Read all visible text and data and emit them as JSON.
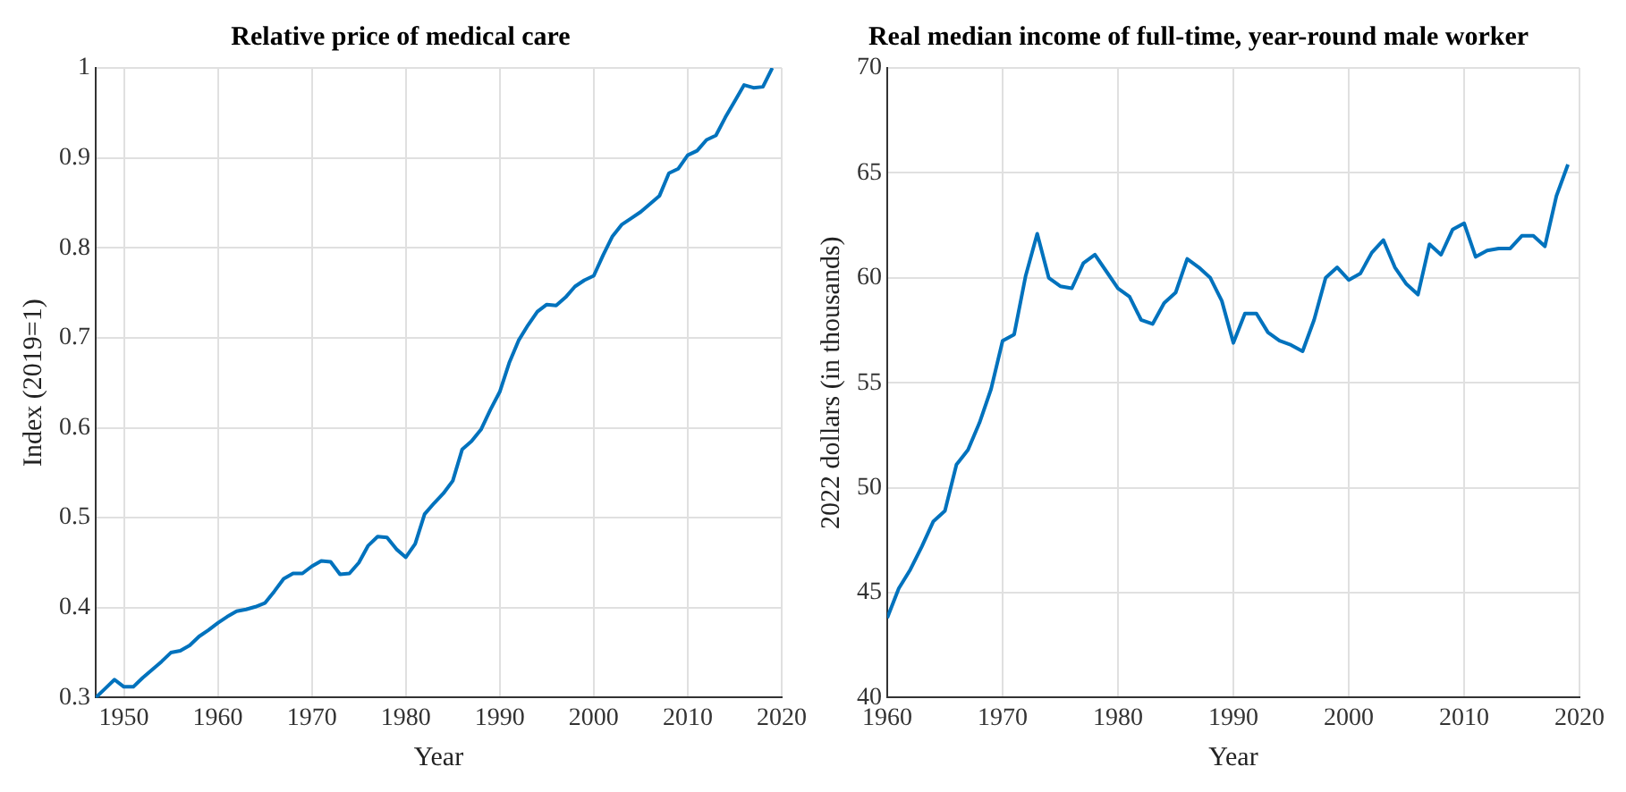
{
  "chart_data": [
    {
      "type": "line",
      "title": "Relative price of medical care",
      "xlabel": "Year",
      "ylabel": "Index (2019=1)",
      "grid": true,
      "x": [
        1947,
        1948,
        1949,
        1950,
        1951,
        1952,
        1953,
        1954,
        1955,
        1956,
        1957,
        1958,
        1959,
        1960,
        1961,
        1962,
        1963,
        1964,
        1965,
        1966,
        1967,
        1968,
        1969,
        1970,
        1971,
        1972,
        1973,
        1974,
        1975,
        1976,
        1977,
        1978,
        1979,
        1980,
        1981,
        1982,
        1983,
        1984,
        1985,
        1986,
        1987,
        1988,
        1989,
        1990,
        1991,
        1992,
        1993,
        1994,
        1995,
        1996,
        1997,
        1998,
        1999,
        2000,
        2001,
        2002,
        2003,
        2004,
        2005,
        2006,
        2007,
        2008,
        2009,
        2010,
        2011,
        2012,
        2013,
        2014,
        2015,
        2016,
        2017,
        2018,
        2019
      ],
      "series": [
        {
          "color": "#0072bd",
          "values": [
            0.3,
            0.31,
            0.32,
            0.312,
            0.312,
            0.322,
            0.331,
            0.34,
            0.35,
            0.352,
            0.358,
            0.368,
            0.375,
            0.383,
            0.39,
            0.396,
            0.398,
            0.401,
            0.405,
            0.418,
            0.432,
            0.438,
            0.438,
            0.446,
            0.452,
            0.451,
            0.437,
            0.438,
            0.45,
            0.469,
            0.479,
            0.478,
            0.465,
            0.456,
            0.471,
            0.504,
            0.516,
            0.527,
            0.541,
            0.576,
            0.585,
            0.598,
            0.62,
            0.64,
            0.672,
            0.697,
            0.714,
            0.729,
            0.737,
            0.736,
            0.745,
            0.757,
            0.764,
            0.769,
            0.792,
            0.813,
            0.826,
            0.833,
            0.84,
            0.849,
            0.858,
            0.883,
            0.888,
            0.903,
            0.908,
            0.92,
            0.925,
            0.945,
            0.963,
            0.981,
            0.978,
            0.979,
            1.0
          ]
        }
      ],
      "xlim": [
        1947,
        2020
      ],
      "xticks": [
        1950,
        1960,
        1970,
        1980,
        1990,
        2000,
        2010,
        2020
      ],
      "ylim": [
        0.3,
        1
      ],
      "yticks": [
        0.3,
        0.4,
        0.5,
        0.6,
        0.7,
        0.8,
        0.9,
        1
      ]
    },
    {
      "type": "line",
      "title": "Real median income of full-time, year-round male worker",
      "xlabel": "Year",
      "ylabel": "2022 dollars (in thousands)",
      "grid": true,
      "x": [
        1960,
        1961,
        1962,
        1963,
        1964,
        1965,
        1966,
        1967,
        1968,
        1969,
        1970,
        1971,
        1972,
        1973,
        1974,
        1975,
        1976,
        1977,
        1978,
        1979,
        1980,
        1981,
        1982,
        1983,
        1984,
        1985,
        1986,
        1987,
        1988,
        1989,
        1990,
        1991,
        1992,
        1993,
        1994,
        1995,
        1996,
        1997,
        1998,
        1999,
        2000,
        2001,
        2002,
        2003,
        2004,
        2005,
        2006,
        2007,
        2008,
        2009,
        2010,
        2011,
        2012,
        2013,
        2014,
        2015,
        2016,
        2017,
        2018,
        2019
      ],
      "series": [
        {
          "color": "#0072bd",
          "values": [
            43.8,
            45.2,
            46.1,
            47.2,
            48.4,
            48.9,
            51.1,
            51.8,
            53.1,
            54.7,
            57.0,
            57.3,
            60.1,
            62.1,
            60.0,
            59.6,
            59.5,
            60.7,
            61.1,
            60.3,
            59.5,
            59.1,
            58.0,
            57.8,
            58.8,
            59.3,
            60.9,
            60.5,
            60.0,
            58.9,
            56.9,
            58.3,
            58.3,
            57.4,
            57.0,
            56.8,
            56.5,
            58.0,
            60.0,
            60.5,
            59.9,
            60.2,
            61.2,
            61.8,
            60.5,
            59.7,
            59.2,
            61.6,
            61.1,
            62.3,
            62.6,
            61.0,
            61.3,
            61.4,
            61.4,
            62.0,
            62.0,
            61.5,
            63.9,
            65.4
          ]
        }
      ],
      "xlim": [
        1960,
        2020
      ],
      "xticks": [
        1960,
        1970,
        1980,
        1990,
        2000,
        2010,
        2020
      ],
      "ylim": [
        40,
        70
      ],
      "yticks": [
        40,
        45,
        50,
        55,
        60,
        65,
        70
      ]
    }
  ]
}
